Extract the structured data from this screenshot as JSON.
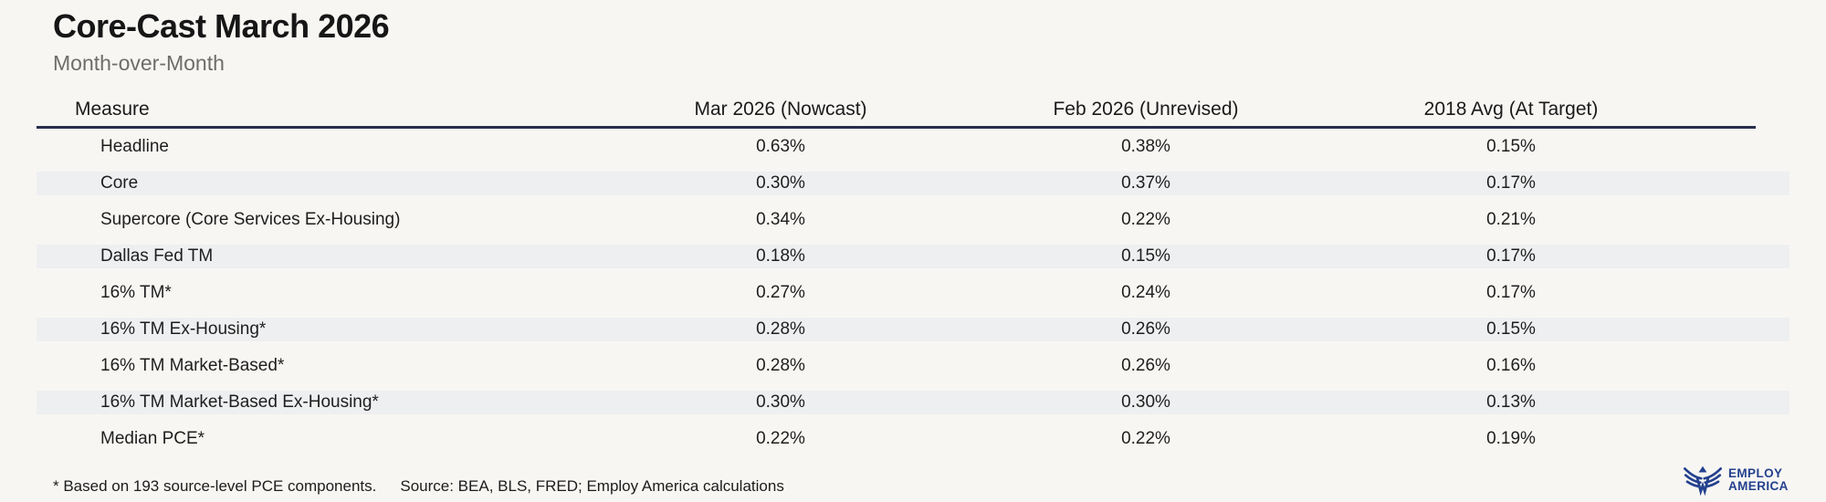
{
  "title": "Core-Cast March 2026",
  "subtitle": "Month-over-Month",
  "footnote": "* Based on 193 source-level PCE components.",
  "source": "Source: BEA, BLS, FRED; Employ America calculations",
  "logo": {
    "icon": "eagle-icon",
    "line1": "EMPLOY",
    "line2": "AMERICA"
  },
  "colors": {
    "bg": "#f7f6f3",
    "stripe": "#eeeff0",
    "line": "#282e4d",
    "brand": "#24418e"
  },
  "chart_data": {
    "type": "table",
    "columns": [
      "Measure",
      "Mar 2026 (Nowcast)",
      "Feb 2026 (Unrevised)",
      "2018 Avg (At Target)"
    ],
    "rows": [
      [
        "Headline",
        "0.63%",
        "0.38%",
        "0.15%"
      ],
      [
        "Core",
        "0.30%",
        "0.37%",
        "0.17%"
      ],
      [
        "Supercore (Core Services Ex-Housing)",
        "0.34%",
        "0.22%",
        "0.21%"
      ],
      [
        "Dallas Fed TM",
        "0.18%",
        "0.15%",
        "0.17%"
      ],
      [
        "16% TM*",
        "0.27%",
        "0.24%",
        "0.17%"
      ],
      [
        "16% TM Ex-Housing*",
        "0.28%",
        "0.26%",
        "0.15%"
      ],
      [
        "16% TM Market-Based*",
        "0.28%",
        "0.26%",
        "0.16%"
      ],
      [
        "16% TM Market-Based Ex-Housing*",
        "0.30%",
        "0.30%",
        "0.13%"
      ],
      [
        "Median PCE*",
        "0.22%",
        "0.22%",
        "0.19%"
      ]
    ],
    "title": "Core-Cast March 2026",
    "subtitle": "Month-over-Month",
    "layout": {
      "striped_rows": "even (2nd, 4th, 6th, 8th)",
      "value_alignment": "center",
      "header_rule": true
    }
  }
}
